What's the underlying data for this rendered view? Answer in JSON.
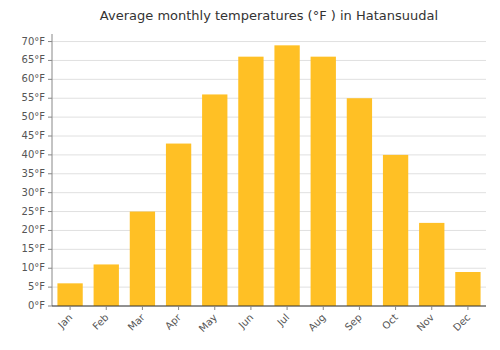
{
  "chart_data": {
    "type": "bar",
    "title": "Average monthly temperatures (°F ) in Hatansuudal",
    "categories": [
      "Jan",
      "Feb",
      "Mar",
      "Apr",
      "May",
      "Jun",
      "Jul",
      "Aug",
      "Sep",
      "Oct",
      "Nov",
      "Dec"
    ],
    "values": [
      6,
      11,
      25,
      43,
      56,
      66,
      69,
      66,
      55,
      40,
      22,
      9
    ],
    "color": "#FFC025",
    "ylim": [
      0,
      72
    ],
    "yticks": [
      {
        "value": 0,
        "label": "0°F"
      },
      {
        "value": 5,
        "label": "5°F"
      },
      {
        "value": 10,
        "label": "10°F"
      },
      {
        "value": 15,
        "label": "15°F"
      },
      {
        "value": 20,
        "label": "20°F"
      },
      {
        "value": 25,
        "label": "25°F"
      },
      {
        "value": 30,
        "label": "30°F"
      },
      {
        "value": 35,
        "label": "35°F"
      },
      {
        "value": 40,
        "label": "40°F"
      },
      {
        "value": 45,
        "label": "45°F"
      },
      {
        "value": 50,
        "label": "50°F"
      },
      {
        "value": 55,
        "label": "55°F"
      },
      {
        "value": 60,
        "label": "60°F"
      },
      {
        "value": 65,
        "label": "65°F"
      },
      {
        "value": 70,
        "label": "70°F"
      }
    ],
    "grid": true
  }
}
